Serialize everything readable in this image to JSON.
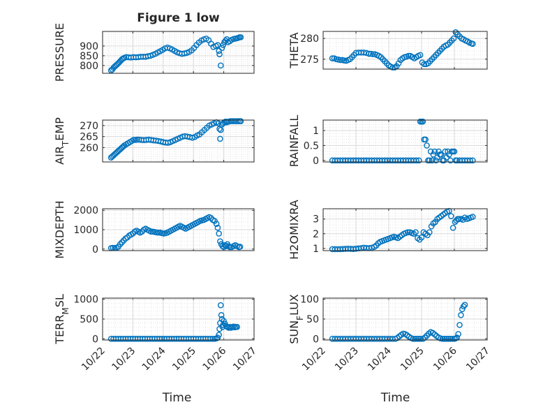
{
  "figure": {
    "title": "Figure 1 low",
    "left_xlabel": "Time",
    "right_xlabel": "Time",
    "marker_color": "#0072BD",
    "x_tick_labels": [
      "10/22",
      "10/23",
      "10/24",
      "10/25",
      "10/26",
      "10/27"
    ]
  },
  "chart_data": [
    {
      "type": "scatter",
      "ylabel": "PRESSURE",
      "xlim": [
        "10/22",
        "10/27"
      ],
      "ylim": [
        760,
        975
      ],
      "yticks": [
        800,
        850,
        900
      ],
      "grid": true,
      "x": [
        0.28,
        0.32,
        0.36,
        0.4,
        0.44,
        0.48,
        0.52,
        0.56,
        0.6,
        0.64,
        0.68,
        0.72,
        0.78,
        0.86,
        0.94,
        1.02,
        1.1,
        1.18,
        1.26,
        1.34,
        1.42,
        1.5,
        1.58,
        1.66,
        1.74,
        1.82,
        1.9,
        1.98,
        2.06,
        2.14,
        2.22,
        2.3,
        2.38,
        2.46,
        2.54,
        2.62,
        2.7,
        2.78,
        2.86,
        2.94,
        3.02,
        3.1,
        3.18,
        3.26,
        3.34,
        3.42,
        3.5,
        3.58,
        3.66,
        3.74,
        3.8,
        3.84,
        3.86,
        3.9,
        3.94,
        3.98,
        4.02,
        4.06,
        4.1,
        4.14,
        4.2,
        4.26,
        4.32,
        4.38,
        4.44,
        4.48,
        4.52,
        4.56
      ],
      "y": [
        775,
        780,
        788,
        795,
        800,
        806,
        812,
        818,
        825,
        832,
        836,
        840,
        843,
        842,
        841,
        843,
        842,
        843,
        845,
        845,
        845,
        848,
        850,
        855,
        860,
        867,
        873,
        880,
        888,
        892,
        888,
        882,
        875,
        868,
        863,
        860,
        862,
        865,
        870,
        878,
        890,
        905,
        918,
        928,
        934,
        938,
        930,
        912,
        895,
        900,
        905,
        875,
        858,
        800,
        890,
        905,
        920,
        928,
        935,
        920,
        925,
        932,
        936,
        938,
        940,
        942,
        945,
        945
      ]
    },
    {
      "type": "scatter",
      "ylabel": "THETA",
      "xlim": [
        "10/22",
        "10/27"
      ],
      "ylim": [
        272.6,
        281.7
      ],
      "yticks": [
        275,
        280
      ],
      "grid": true,
      "x": [
        0.28,
        0.34,
        0.4,
        0.46,
        0.52,
        0.58,
        0.64,
        0.7,
        0.76,
        0.82,
        0.88,
        0.94,
        1.0,
        1.08,
        1.16,
        1.24,
        1.32,
        1.4,
        1.46,
        1.52,
        1.58,
        1.64,
        1.7,
        1.76,
        1.82,
        1.88,
        1.94,
        2.0,
        2.06,
        2.12,
        2.18,
        2.24,
        2.3,
        2.36,
        2.42,
        2.48,
        2.54,
        2.6,
        2.66,
        2.72,
        2.78,
        2.84,
        2.9,
        2.96,
        3.02,
        3.08,
        3.14,
        3.2,
        3.26,
        3.32,
        3.38,
        3.44,
        3.5,
        3.56,
        3.62,
        3.68,
        3.74,
        3.8,
        3.86,
        3.92,
        3.98,
        4.04,
        4.1,
        4.16,
        4.22,
        4.28,
        4.34,
        4.4,
        4.46,
        4.52,
        4.56
      ],
      "y": [
        275.2,
        275.2,
        275.0,
        274.9,
        274.8,
        274.8,
        274.7,
        274.6,
        274.8,
        275.0,
        275.5,
        276.0,
        276.5,
        276.6,
        276.6,
        276.6,
        276.5,
        276.3,
        276.3,
        276.2,
        276.2,
        276.0,
        275.8,
        275.5,
        275.0,
        274.5,
        274.0,
        273.5,
        273.2,
        273.0,
        273.0,
        273.3,
        274.0,
        274.8,
        275.2,
        275.5,
        275.6,
        275.8,
        275.8,
        275.5,
        275.2,
        275.5,
        275.8,
        276.0,
        274.2,
        273.8,
        273.8,
        274.0,
        274.5,
        275.0,
        275.5,
        276.0,
        276.5,
        277.0,
        277.5,
        278.0,
        278.3,
        278.5,
        279.0,
        279.5,
        280.0,
        281.5,
        281.0,
        280.5,
        280.0,
        279.8,
        279.5,
        279.3,
        279.0,
        278.8,
        278.7
      ]
    },
    {
      "type": "scatter",
      "ylabel": "AIR_TEMP",
      "xlim": [
        "10/22",
        "10/27"
      ],
      "ylim": [
        253.5,
        272.5
      ],
      "yticks": [
        260,
        265,
        270
      ],
      "grid": true,
      "x": [
        0.28,
        0.32,
        0.36,
        0.4,
        0.44,
        0.48,
        0.52,
        0.56,
        0.6,
        0.64,
        0.68,
        0.72,
        0.78,
        0.84,
        0.9,
        0.96,
        1.02,
        1.08,
        1.14,
        1.2,
        1.28,
        1.36,
        1.44,
        1.52,
        1.6,
        1.68,
        1.76,
        1.84,
        1.92,
        2.0,
        2.08,
        2.16,
        2.24,
        2.32,
        2.4,
        2.48,
        2.56,
        2.64,
        2.72,
        2.8,
        2.88,
        2.96,
        3.04,
        3.12,
        3.2,
        3.28,
        3.36,
        3.44,
        3.52,
        3.6,
        3.68,
        3.76,
        3.82,
        3.86,
        3.88,
        3.9,
        3.94,
        3.98,
        4.02,
        4.06,
        4.1,
        4.16,
        4.22,
        4.28,
        4.34,
        4.4,
        4.46,
        4.52,
        4.56
      ],
      "y": [
        255.5,
        256.0,
        256.5,
        257.0,
        257.5,
        258.0,
        258.5,
        259.0,
        259.5,
        260.0,
        260.5,
        261.0,
        261.5,
        262.0,
        262.5,
        263.0,
        263.5,
        263.5,
        263.6,
        263.6,
        263.5,
        263.4,
        263.5,
        263.6,
        263.5,
        263.3,
        263.2,
        263.0,
        262.8,
        262.5,
        262.3,
        262.2,
        262.5,
        263.0,
        263.5,
        264.0,
        264.5,
        265.0,
        265.2,
        265.0,
        264.8,
        264.5,
        264.8,
        265.5,
        266.0,
        267.0,
        268.0,
        269.0,
        270.0,
        270.5,
        271.0,
        271.5,
        271.0,
        268.5,
        264.0,
        268.0,
        270.5,
        271.0,
        271.5,
        271.8,
        271.5,
        271.8,
        272.0,
        272.0,
        272.0,
        272.0,
        272.0,
        272.0,
        272.0
      ]
    },
    {
      "type": "scatter",
      "ylabel": "RAINFALL",
      "xlim": [
        "10/22",
        "10/27"
      ],
      "ylim": [
        -0.05,
        1.35
      ],
      "yticks": [
        0,
        0.5,
        1
      ],
      "grid": true,
      "x": [
        0.28,
        0.36,
        0.44,
        0.52,
        0.6,
        0.68,
        0.76,
        0.84,
        0.92,
        1.0,
        1.08,
        1.16,
        1.24,
        1.32,
        1.4,
        1.48,
        1.56,
        1.64,
        1.72,
        1.8,
        1.88,
        1.96,
        2.04,
        2.12,
        2.2,
        2.28,
        2.36,
        2.44,
        2.52,
        2.6,
        2.68,
        2.76,
        2.84,
        2.92,
        2.96,
        3.0,
        3.04,
        3.08,
        3.12,
        3.16,
        3.2,
        3.24,
        3.28,
        3.32,
        3.36,
        3.4,
        3.44,
        3.48,
        3.52,
        3.56,
        3.6,
        3.64,
        3.68,
        3.72,
        3.76,
        3.8,
        3.84,
        3.88,
        3.92,
        3.96,
        4.0,
        4.04,
        4.08,
        4.16,
        4.24,
        4.32,
        4.4,
        4.48,
        4.56
      ],
      "y": [
        0,
        0,
        0,
        0,
        0,
        0,
        0,
        0,
        0,
        0,
        0,
        0,
        0,
        0,
        0,
        0,
        0,
        0,
        0,
        0,
        0,
        0,
        0,
        0,
        0,
        0,
        0,
        0,
        0,
        0,
        0,
        0,
        0,
        0,
        1.3,
        1.3,
        1.3,
        0.7,
        0.7,
        0.5,
        0,
        0,
        0.3,
        0,
        0.2,
        0.3,
        0,
        0.1,
        0.3,
        0.2,
        0.2,
        0,
        0,
        0.3,
        0.1,
        0.3,
        0.2,
        0,
        0.3,
        0.3,
        0.3,
        0,
        0,
        0,
        0,
        0,
        0,
        0,
        0
      ]
    },
    {
      "type": "scatter",
      "ylabel": "MIXDEPTH",
      "xlim": [
        "10/22",
        "10/27"
      ],
      "ylim": [
        -80,
        2080
      ],
      "yticks": [
        0,
        1000,
        2000
      ],
      "grid": true,
      "x": [
        0.28,
        0.34,
        0.4,
        0.46,
        0.52,
        0.58,
        0.64,
        0.7,
        0.76,
        0.82,
        0.88,
        0.94,
        1.0,
        1.06,
        1.12,
        1.18,
        1.24,
        1.3,
        1.36,
        1.42,
        1.48,
        1.54,
        1.6,
        1.66,
        1.72,
        1.78,
        1.84,
        1.9,
        1.96,
        2.02,
        2.08,
        2.14,
        2.2,
        2.26,
        2.32,
        2.38,
        2.44,
        2.5,
        2.56,
        2.62,
        2.68,
        2.74,
        2.8,
        2.86,
        2.92,
        2.98,
        3.04,
        3.1,
        3.16,
        3.22,
        3.28,
        3.34,
        3.4,
        3.46,
        3.52,
        3.58,
        3.64,
        3.7,
        3.76,
        3.8,
        3.84,
        3.88,
        3.92,
        3.96,
        4.0,
        4.04,
        4.08,
        4.12,
        4.16,
        4.2,
        4.26,
        4.32,
        4.38,
        4.44,
        4.5,
        4.54
      ],
      "y": [
        50,
        60,
        55,
        70,
        120,
        250,
        350,
        450,
        550,
        600,
        700,
        750,
        800,
        900,
        950,
        900,
        850,
        900,
        1000,
        1050,
        1000,
        950,
        900,
        900,
        880,
        860,
        850,
        850,
        820,
        800,
        820,
        850,
        900,
        950,
        1000,
        1050,
        1100,
        1150,
        1200,
        1150,
        1100,
        1050,
        1100,
        1150,
        1200,
        1250,
        1300,
        1350,
        1400,
        1450,
        1480,
        1500,
        1550,
        1600,
        1650,
        1600,
        1500,
        1450,
        1300,
        1100,
        800,
        400,
        250,
        150,
        100,
        200,
        150,
        250,
        150,
        100,
        100,
        150,
        200,
        150,
        100,
        120
      ]
    },
    {
      "type": "scatter",
      "ylabel": "H2OMIXRA",
      "xlim": [
        "10/22",
        "10/27"
      ],
      "ylim": [
        0.85,
        3.7
      ],
      "yticks": [
        1,
        2,
        3
      ],
      "grid": true,
      "x": [
        0.28,
        0.36,
        0.44,
        0.52,
        0.6,
        0.68,
        0.76,
        0.84,
        0.92,
        1.0,
        1.08,
        1.16,
        1.24,
        1.32,
        1.4,
        1.48,
        1.56,
        1.62,
        1.68,
        1.74,
        1.8,
        1.86,
        1.92,
        1.98,
        2.04,
        2.1,
        2.16,
        2.22,
        2.28,
        2.34,
        2.4,
        2.46,
        2.52,
        2.58,
        2.64,
        2.7,
        2.76,
        2.82,
        2.88,
        2.94,
        3.0,
        3.06,
        3.12,
        3.18,
        3.24,
        3.3,
        3.36,
        3.42,
        3.48,
        3.54,
        3.6,
        3.66,
        3.72,
        3.78,
        3.84,
        3.9,
        3.96,
        4.02,
        4.06,
        4.1,
        4.14,
        4.2,
        4.26,
        4.32,
        4.38,
        4.44,
        4.5,
        4.56
      ],
      "y": [
        0.95,
        0.95,
        0.95,
        0.95,
        0.96,
        0.97,
        0.98,
        0.97,
        0.96,
        0.98,
        1.0,
        1.02,
        1.05,
        1.03,
        1.02,
        1.05,
        1.1,
        1.2,
        1.35,
        1.45,
        1.5,
        1.55,
        1.6,
        1.65,
        1.7,
        1.75,
        1.8,
        1.75,
        1.7,
        1.8,
        1.9,
        2.0,
        2.05,
        2.1,
        2.1,
        2.05,
        2.0,
        2.1,
        1.7,
        1.6,
        1.75,
        2.1,
        2.0,
        1.9,
        2.1,
        2.5,
        2.7,
        2.8,
        3.0,
        3.1,
        3.2,
        3.3,
        3.4,
        3.5,
        3.55,
        3.2,
        2.4,
        2.8,
        2.9,
        3.0,
        3.0,
        3.0,
        2.95,
        3.1,
        3.0,
        3.05,
        3.1,
        3.15
      ]
    },
    {
      "type": "scatter",
      "ylabel": "TERR_MSL",
      "xlim": [
        "10/22",
        "10/27"
      ],
      "ylim": [
        -30,
        1030
      ],
      "yticks": [
        0,
        500,
        1000
      ],
      "grid": true,
      "x": [
        0.28,
        0.36,
        0.44,
        0.52,
        0.6,
        0.68,
        0.76,
        0.84,
        0.92,
        1.0,
        1.08,
        1.16,
        1.24,
        1.32,
        1.4,
        1.48,
        1.56,
        1.64,
        1.72,
        1.8,
        1.88,
        1.96,
        2.04,
        2.12,
        2.2,
        2.28,
        2.36,
        2.44,
        2.52,
        2.6,
        2.68,
        2.76,
        2.84,
        2.92,
        3.0,
        3.08,
        3.16,
        3.24,
        3.32,
        3.4,
        3.48,
        3.56,
        3.64,
        3.7,
        3.76,
        3.8,
        3.84,
        3.86,
        3.88,
        3.9,
        3.92,
        3.94,
        3.96,
        3.98,
        4.0,
        4.04,
        4.08,
        4.12,
        4.16,
        4.2,
        4.24,
        4.28,
        4.32,
        4.36,
        4.4,
        4.44
      ],
      "y": [
        0,
        0,
        0,
        0,
        0,
        0,
        0,
        0,
        0,
        0,
        0,
        0,
        0,
        0,
        0,
        0,
        0,
        0,
        0,
        0,
        0,
        0,
        0,
        0,
        0,
        0,
        0,
        0,
        0,
        0,
        0,
        0,
        0,
        0,
        0,
        0,
        0,
        0,
        0,
        0,
        0,
        0,
        0,
        0,
        10,
        30,
        100,
        250,
        400,
        850,
        600,
        500,
        300,
        350,
        450,
        380,
        320,
        300,
        280,
        300,
        280,
        300,
        310,
        290,
        300,
        300
      ]
    },
    {
      "type": "scatter",
      "ylabel": "SUN_FLUX",
      "xlim": [
        "10/22",
        "10/27"
      ],
      "ylim": [
        -3,
        103
      ],
      "yticks": [
        0,
        50,
        100
      ],
      "grid": true,
      "x": [
        0.28,
        0.36,
        0.44,
        0.52,
        0.6,
        0.68,
        0.76,
        0.84,
        0.92,
        1.0,
        1.08,
        1.16,
        1.24,
        1.32,
        1.4,
        1.48,
        1.56,
        1.64,
        1.72,
        1.8,
        1.88,
        1.96,
        2.04,
        2.12,
        2.2,
        2.26,
        2.32,
        2.38,
        2.44,
        2.5,
        2.56,
        2.62,
        2.68,
        2.74,
        2.8,
        2.86,
        2.92,
        2.98,
        3.04,
        3.1,
        3.16,
        3.22,
        3.28,
        3.34,
        3.4,
        3.46,
        3.52,
        3.58,
        3.64,
        3.7,
        3.76,
        3.82,
        3.88,
        3.94,
        4.0,
        4.04,
        4.08,
        4.12,
        4.16,
        4.2,
        4.24,
        4.28,
        4.32
      ],
      "y": [
        0,
        0,
        0,
        0,
        0,
        0,
        0,
        0,
        0,
        0,
        0,
        0,
        0,
        0,
        0,
        0,
        0,
        0,
        0,
        0,
        0,
        0,
        0,
        0,
        0,
        2,
        6,
        10,
        13,
        12,
        9,
        5,
        2,
        0,
        0,
        0,
        0,
        0,
        0,
        3,
        8,
        13,
        17,
        15,
        11,
        7,
        3,
        1,
        0,
        0,
        0,
        0,
        0,
        0,
        0,
        1,
        3,
        12,
        35,
        60,
        75,
        82,
        86
      ]
    }
  ]
}
